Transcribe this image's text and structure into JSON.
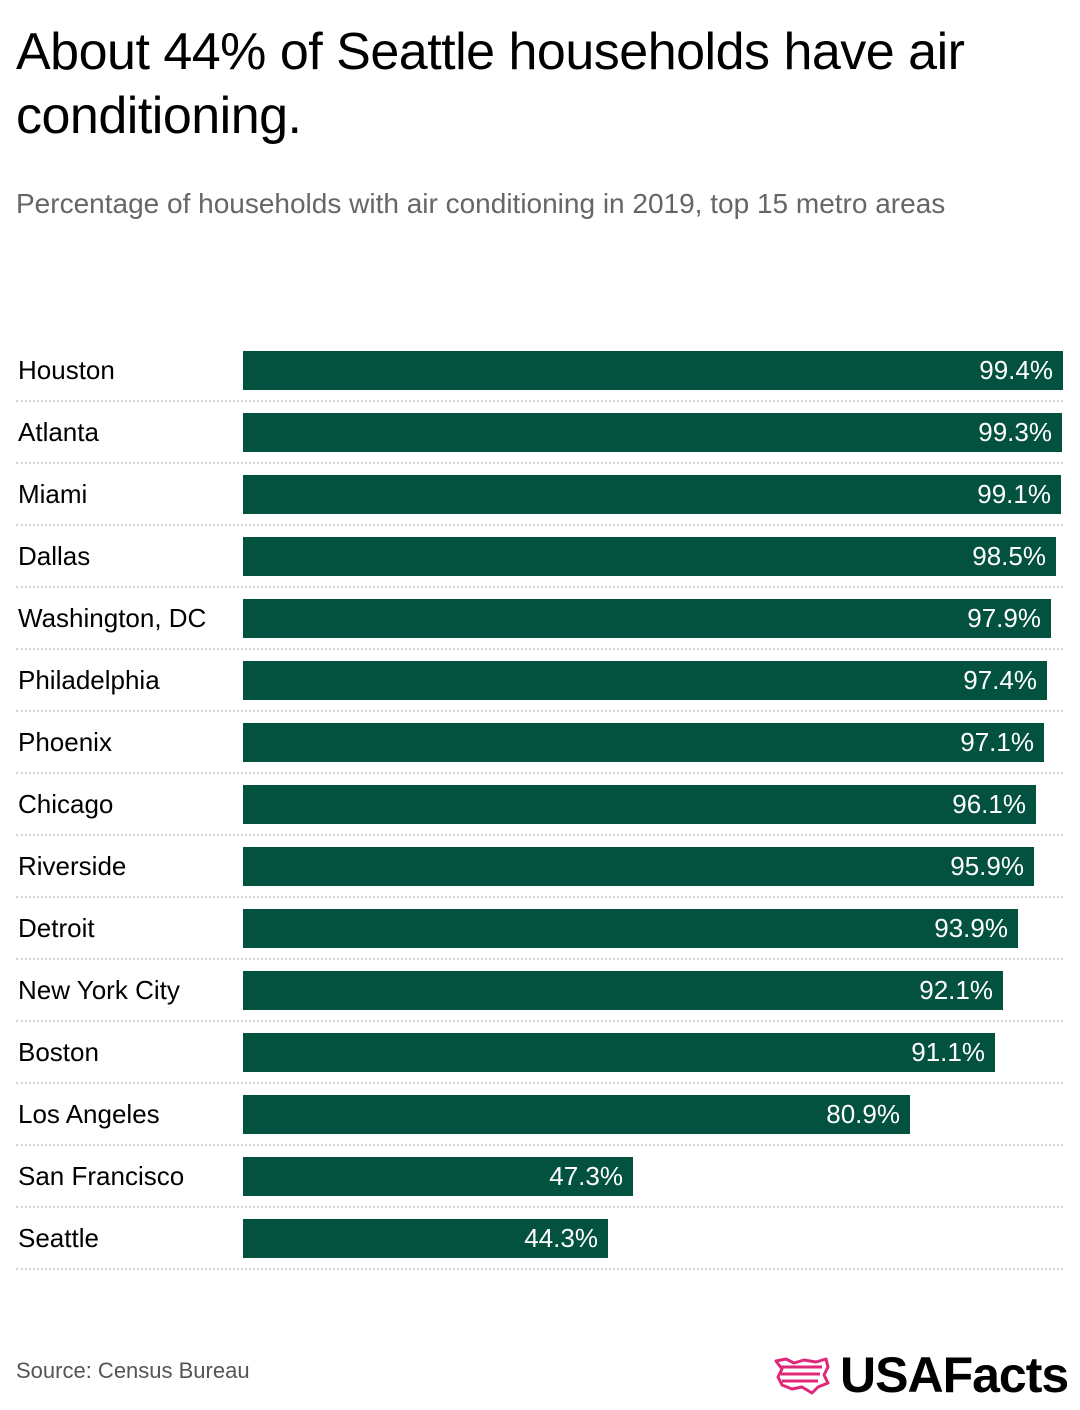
{
  "title": "About 44% of Seattle households have air conditioning.",
  "subtitle": "Percentage of households with air conditioning in 2019, top 15 metro areas",
  "source": "Source: Census Bureau",
  "logo": {
    "text": "USAFacts",
    "icon": "usafacts-flag-logo-icon"
  },
  "colors": {
    "bar": "#03513f",
    "bar_label": "#ffffff",
    "logo_accent": "#e0287a"
  },
  "chart_data": {
    "type": "bar",
    "orientation": "horizontal",
    "categories": [
      "Houston",
      "Atlanta",
      "Miami",
      "Dallas",
      "Washington, DC",
      "Philadelphia",
      "Phoenix",
      "Chicago",
      "Riverside",
      "Detroit",
      "New York City",
      "Boston",
      "Los Angeles",
      "San Francisco",
      "Seattle"
    ],
    "values": [
      99.4,
      99.3,
      99.1,
      98.5,
      97.9,
      97.4,
      97.1,
      96.1,
      95.9,
      93.9,
      92.1,
      91.1,
      80.9,
      47.3,
      44.3
    ],
    "value_labels": [
      "99.4%",
      "99.3%",
      "99.1%",
      "98.5%",
      "97.9%",
      "97.4%",
      "97.1%",
      "96.1%",
      "95.9%",
      "93.9%",
      "92.1%",
      "91.1%",
      "80.9%",
      "47.3%",
      "44.3%"
    ],
    "title": "About 44% of Seattle households have air conditioning.",
    "xlabel": "",
    "ylabel": "",
    "xlim": [
      0,
      99.4
    ],
    "grid": false,
    "legend": "none"
  }
}
